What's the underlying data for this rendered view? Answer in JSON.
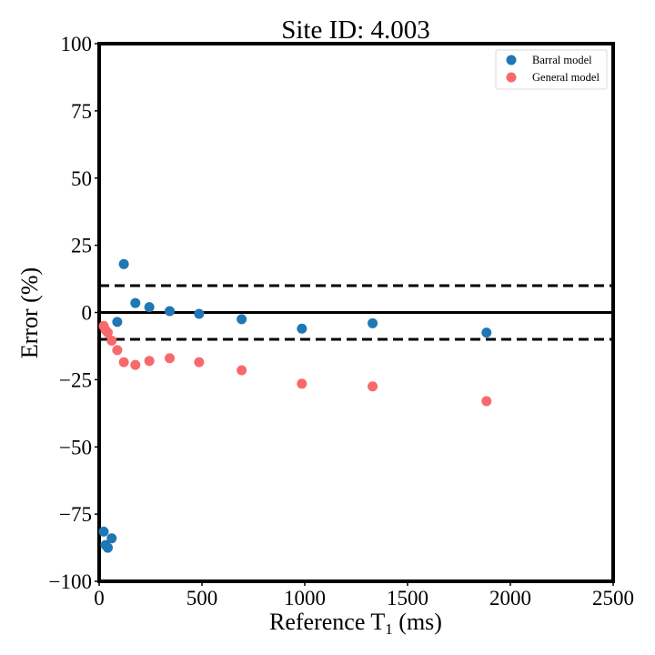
{
  "chart_data": {
    "type": "scatter",
    "title": "Site ID: 4.003",
    "xlabel": "Reference T",
    "xlabel_sub": "1",
    "xlabel_unit": " (ms)",
    "ylabel": "Error (%)",
    "xlim": [
      0,
      2500
    ],
    "ylim": [
      -100,
      100
    ],
    "xticks": [
      0,
      500,
      1000,
      1500,
      2000,
      2500
    ],
    "yticks": [
      -100,
      -75,
      -50,
      -25,
      0,
      25,
      50,
      75,
      100
    ],
    "ytick_labels": [
      "−100",
      "−75",
      "−50",
      "−25",
      "0",
      "25",
      "50",
      "75",
      "100"
    ],
    "reference_lines": {
      "solid": [
        0
      ],
      "dashed": [
        10,
        -10
      ]
    },
    "grid": false,
    "legend_position": "top-right",
    "series": [
      {
        "name": "Barral model",
        "color": "#1f77b4",
        "points": [
          [
            22,
            -81.5
          ],
          [
            31,
            -86.5
          ],
          [
            42,
            -87.5
          ],
          [
            61,
            -84
          ],
          [
            88,
            -3.5
          ],
          [
            120,
            18
          ],
          [
            176,
            3.5
          ],
          [
            244,
            2
          ],
          [
            343,
            0.5
          ],
          [
            486,
            -0.5
          ],
          [
            693,
            -2.5
          ],
          [
            986,
            -6
          ],
          [
            1330,
            -4
          ],
          [
            1884,
            -7.5
          ]
        ]
      },
      {
        "name": "General model",
        "color": "#f8696b",
        "points": [
          [
            22,
            -5
          ],
          [
            31,
            -6.5
          ],
          [
            42,
            -7.5
          ],
          [
            61,
            -10.5
          ],
          [
            88,
            -14
          ],
          [
            120,
            -18.5
          ],
          [
            176,
            -19.5
          ],
          [
            244,
            -18
          ],
          [
            343,
            -17
          ],
          [
            486,
            -18.5
          ],
          [
            693,
            -21.5
          ],
          [
            986,
            -26.5
          ],
          [
            1330,
            -27.5
          ],
          [
            1884,
            -33
          ]
        ]
      }
    ]
  }
}
